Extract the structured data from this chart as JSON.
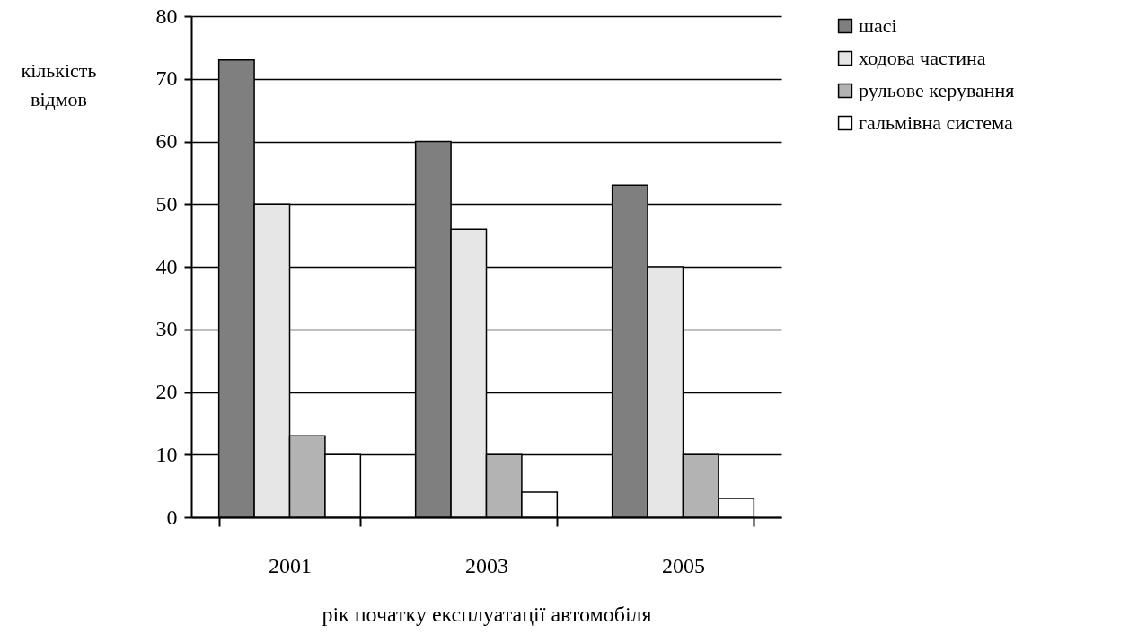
{
  "chart_data": {
    "type": "bar",
    "xlabel": "рік початку експлуатації автомобіля",
    "ylabel": "кількість відмов",
    "categories": [
      "2001",
      "2003",
      "2005"
    ],
    "series": [
      {
        "name": "шасі",
        "color": "#7f7f7f",
        "values": [
          73,
          60,
          53
        ]
      },
      {
        "name": "ходова частина",
        "color": "#e6e6e6",
        "values": [
          50,
          46,
          40
        ]
      },
      {
        "name": "рульове керування",
        "color": "#b3b3b3",
        "values": [
          13,
          10,
          10
        ]
      },
      {
        "name": "гальмівна система",
        "color": "#ffffff",
        "values": [
          10,
          4,
          3
        ]
      }
    ],
    "ylim": [
      0,
      80
    ],
    "yticks": [
      0,
      10,
      20,
      30,
      40,
      50,
      60,
      70,
      80
    ],
    "grid": "y",
    "legend": "right"
  }
}
